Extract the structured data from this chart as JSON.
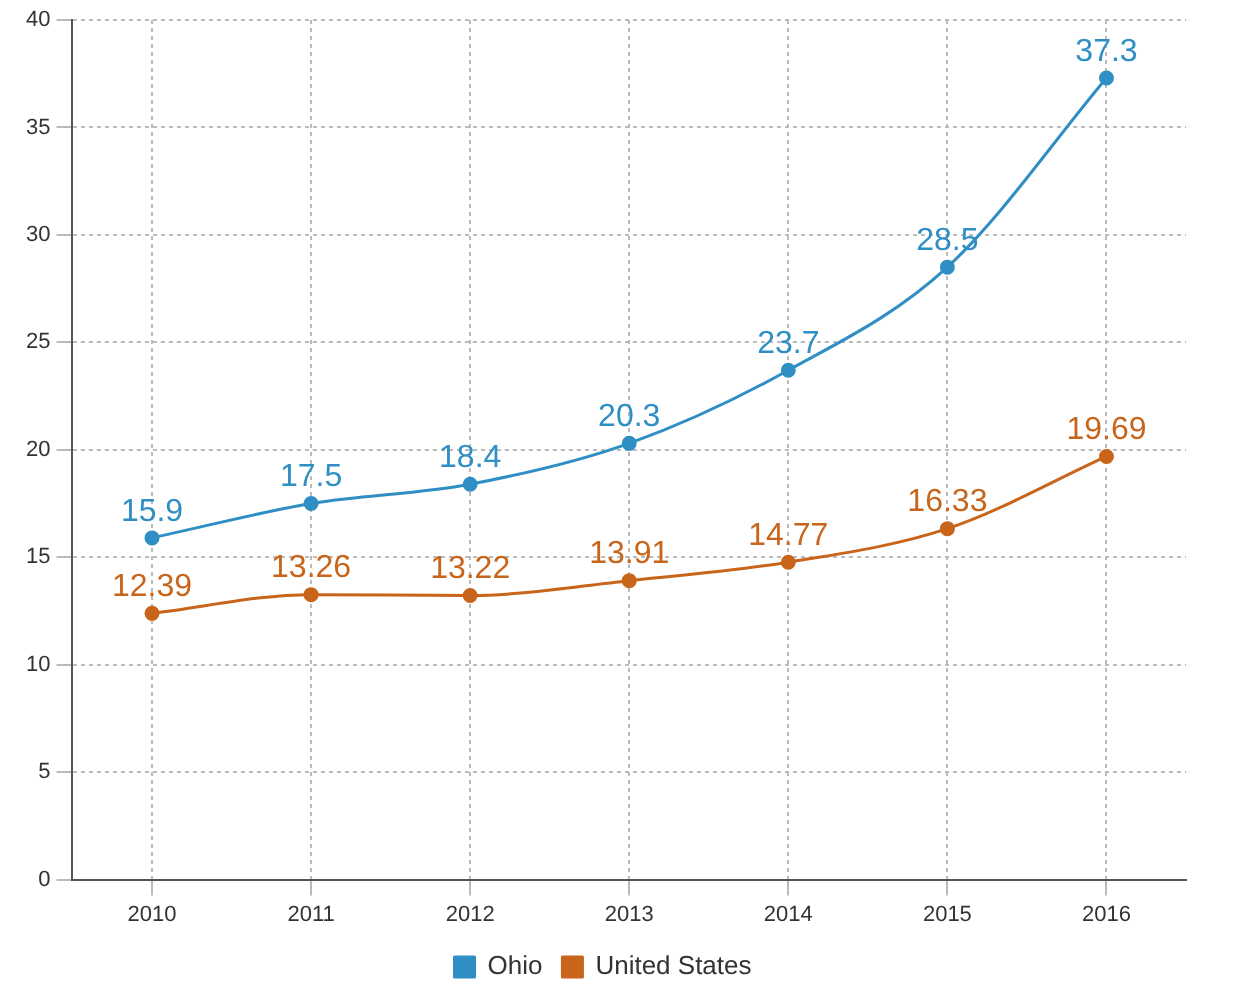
{
  "chart_data": {
    "type": "line",
    "categories": [
      "2010",
      "2011",
      "2012",
      "2013",
      "2014",
      "2015",
      "2016"
    ],
    "series": [
      {
        "name": "Ohio",
        "color": "#2f8fc4",
        "values": [
          15.9,
          17.5,
          18.4,
          20.3,
          23.7,
          28.5,
          37.3
        ]
      },
      {
        "name": "United States",
        "color": "#c8651b",
        "values": [
          12.39,
          13.26,
          13.22,
          13.91,
          14.77,
          16.33,
          19.69
        ]
      }
    ],
    "ylim": [
      0,
      40
    ],
    "yticks": [
      0,
      5,
      10,
      15,
      20,
      25,
      30,
      35,
      40
    ],
    "grid": true,
    "legend": "bottom",
    "marker": "circle",
    "line_style": "solid",
    "data_labels": true
  }
}
